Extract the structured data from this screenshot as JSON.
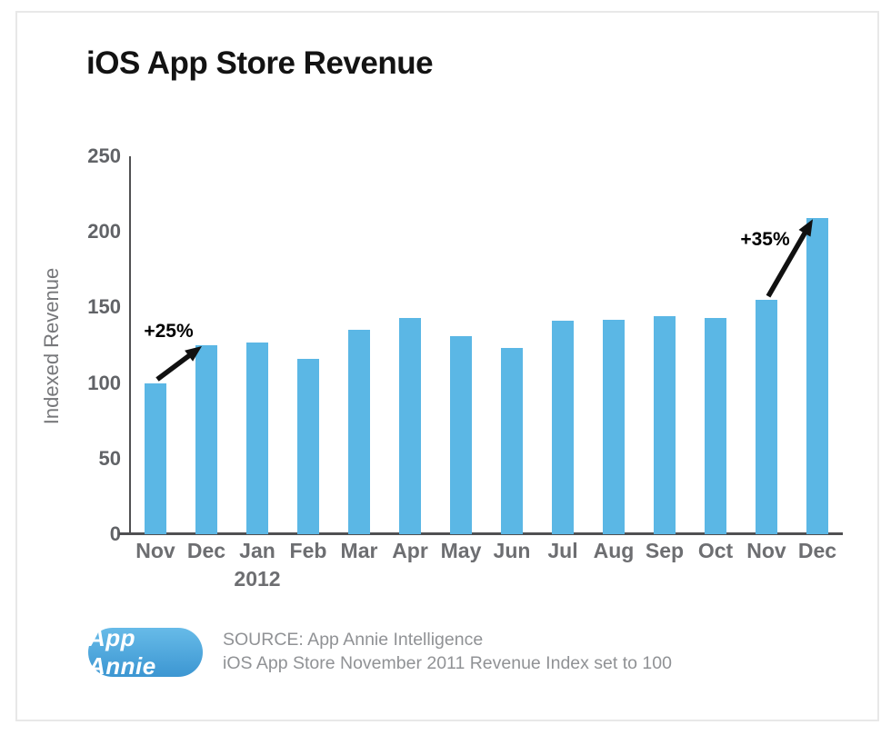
{
  "header": {
    "title": "iOS App Store Revenue"
  },
  "chart_data": {
    "type": "bar",
    "title": "iOS App Store Revenue",
    "xlabel": "",
    "ylabel": "Indexed Revenue",
    "ylim": [
      0,
      250
    ],
    "yticks": [
      250,
      200,
      150,
      100,
      50,
      0
    ],
    "categories": [
      "Nov",
      "Dec",
      "Jan",
      "Feb",
      "Mar",
      "Apr",
      "May",
      "Jun",
      "Jul",
      "Aug",
      "Sep",
      "Oct",
      "Nov",
      "Dec"
    ],
    "year_label": "2012",
    "year_under_index": 2,
    "values": [
      100,
      125,
      127,
      116,
      135,
      143,
      131,
      123,
      141,
      142,
      144,
      143,
      155,
      209
    ],
    "bar_color": "#5bb7e5",
    "axis_color": "#505052",
    "label_color": "#6d6e71",
    "grid": false,
    "legend": false,
    "annotations": [
      {
        "label": "+25%",
        "from_index": 0,
        "to_index": 1
      },
      {
        "label": "+35%",
        "from_index": 12,
        "to_index": 13
      }
    ]
  },
  "footer": {
    "logo_text": "App Annie",
    "source_line1": "SOURCE: App Annie Intelligence",
    "source_line2": "iOS App Store November 2011 Revenue Index set to 100"
  }
}
